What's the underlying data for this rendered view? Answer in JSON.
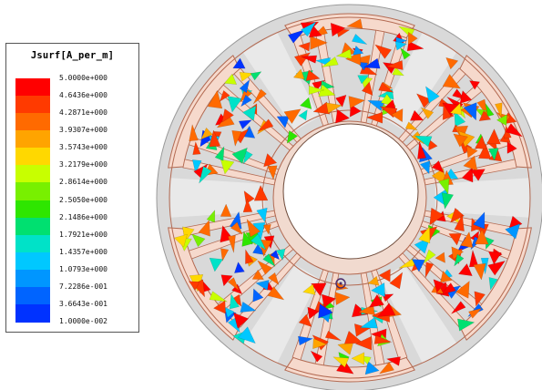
{
  "legend": {
    "title": "Jsurf[A_per_m]",
    "ticks": [
      "5.0000e+000",
      "4.6436e+000",
      "4.2871e+000",
      "3.9307e+000",
      "3.5743e+000",
      "3.2179e+000",
      "2.8614e+000",
      "2.5050e+000",
      "2.1486e+000",
      "1.7921e+000",
      "1.4357e+000",
      "1.0793e+000",
      "7.2286e-001",
      "3.6643e-001",
      "1.0000e-002"
    ],
    "colors": [
      "#ff0000",
      "#ff3a00",
      "#ff6a00",
      "#ffa400",
      "#ffd800",
      "#c8ff00",
      "#78f000",
      "#2ee600",
      "#00e070",
      "#00e2c8",
      "#00c8ff",
      "#0096ff",
      "#0064ff",
      "#0032ff"
    ]
  },
  "colors": {
    "motor_fill": "#d9d9d9",
    "motor_outline": "#9a9a9a",
    "coil_fill": "#f6d9cc",
    "coil_outline": "#b36a52",
    "bore_fill": "#ffffff"
  }
}
